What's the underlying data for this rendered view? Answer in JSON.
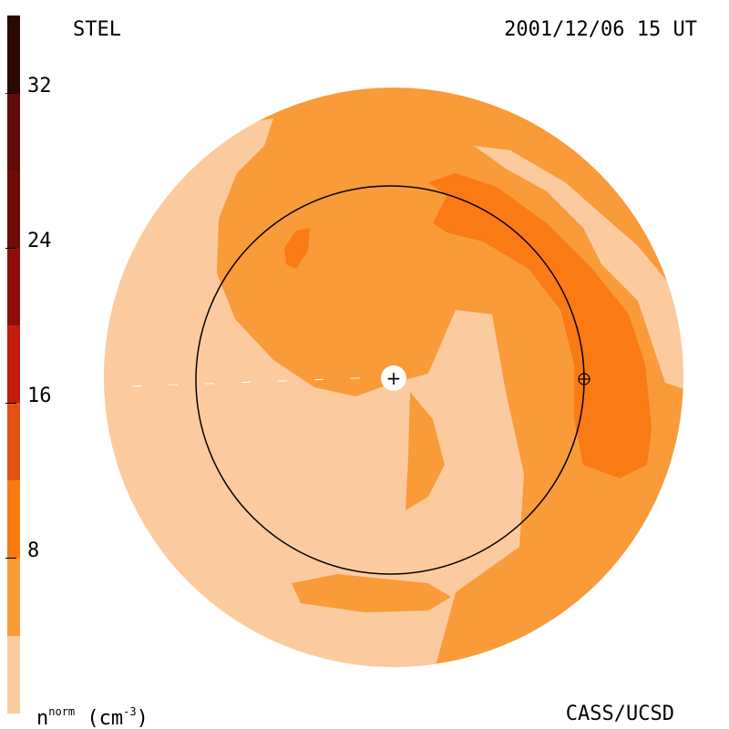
{
  "header": {
    "instrument": "STEL",
    "timestamp": "2001/12/06 15 UT"
  },
  "footer": {
    "credit": "CASS/UCSD"
  },
  "colorbar": {
    "quantity_symbol": "n",
    "quantity_superscript": "norm",
    "unit_prefix": "(cm",
    "unit_exponent": "-3",
    "unit_suffix": ")",
    "ticks": [
      "32",
      "24",
      "16",
      "8"
    ],
    "segment_colors": [
      "#fbcb9f",
      "#f99b39",
      "#fa7a14",
      "#e25313",
      "#c41c0e",
      "#8f0e09",
      "#5f0b06",
      "#2b0803"
    ]
  },
  "map": {
    "colors": {
      "background": "#fbcb9f",
      "mid": "#f99b39",
      "high": "#fa7a14",
      "orbit": "#000000",
      "sun": "#ffffff"
    },
    "sun_symbol": "+",
    "earth_symbol": "⊕"
  }
}
